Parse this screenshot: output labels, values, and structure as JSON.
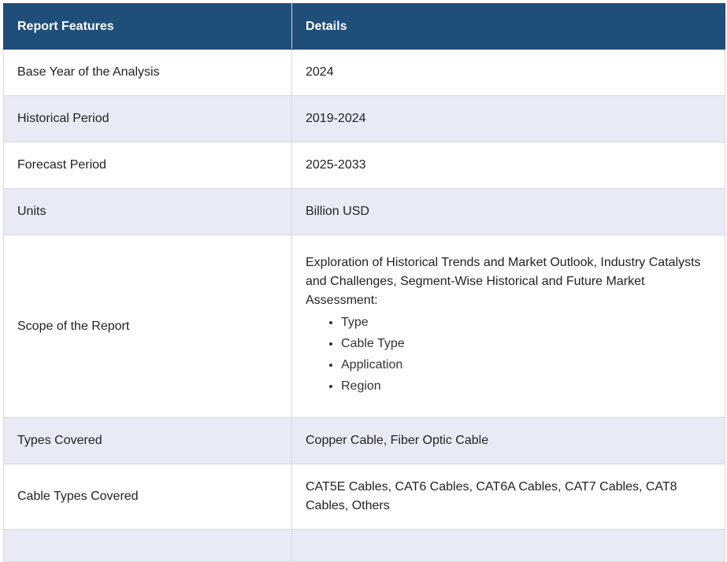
{
  "table": {
    "headers": [
      "Report Features",
      "Details"
    ],
    "rows": [
      {
        "feature": "Base Year of the Analysis",
        "details": "2024"
      },
      {
        "feature": "Historical Period",
        "details": "2019-2024"
      },
      {
        "feature": "Forecast Period",
        "details": "2025-2033"
      },
      {
        "feature": "Units",
        "details": "Billion USD"
      },
      {
        "feature": "Scope of the Report",
        "details": "Exploration of Historical Trends and Market Outlook, Industry Catalysts and Challenges, Segment-Wise Historical and Future Market Assessment:",
        "list": [
          "Type",
          "Cable Type",
          "Application",
          "Region"
        ]
      },
      {
        "feature": "Types Covered",
        "details": "Copper Cable, Fiber Optic Cable"
      },
      {
        "feature": "Cable Types Covered",
        "details": "CAT5E Cables, CAT6 Cables, CAT6A Cables, CAT7 Cables, CAT8 Cables, Others"
      }
    ]
  }
}
